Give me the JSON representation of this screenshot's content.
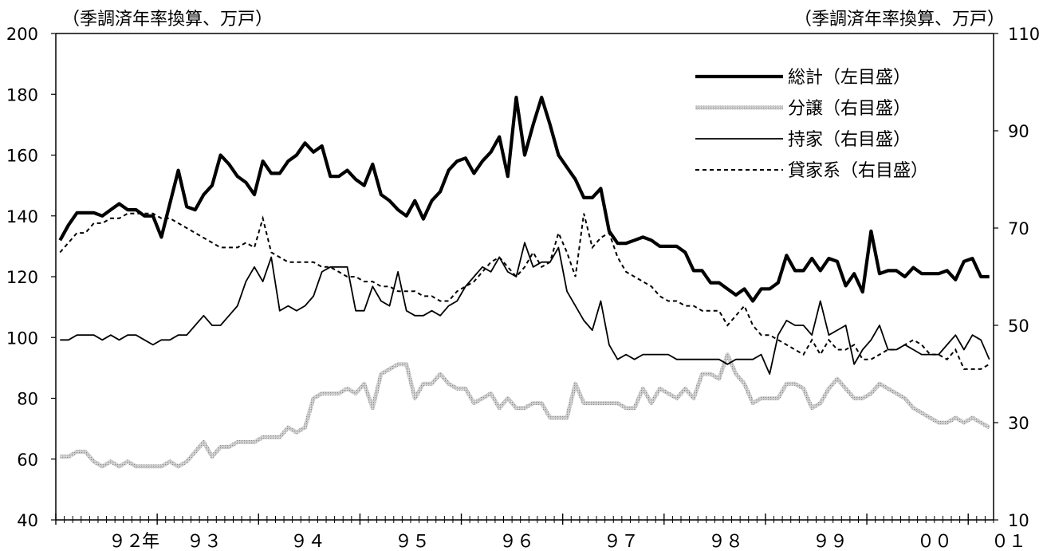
{
  "chart_data": {
    "type": "line",
    "left_axis": {
      "unit_label": "（季調済年率換算、万戸）",
      "range": [
        40,
        200
      ],
      "ticks": [
        40,
        60,
        80,
        100,
        120,
        140,
        160,
        180,
        200
      ]
    },
    "right_axis": {
      "unit_label": "（季調済年率換算、万戸）",
      "range": [
        10,
        110
      ],
      "ticks": [
        10,
        30,
        50,
        70,
        90,
        110
      ]
    },
    "x_axis": {
      "start": "1992-01",
      "months": 111,
      "tick_labels": [
        "９２",
        "年",
        "９３",
        "９４",
        "９５",
        "９６",
        "９７",
        "９８",
        "９９",
        "００",
        "０１"
      ]
    },
    "grid": false,
    "legend_position": "top-right",
    "series": [
      {
        "name": "総計（左目盛）",
        "axis": "left",
        "style": "thick-solid",
        "color": "#000000",
        "values": [
          132,
          137,
          141,
          141,
          141,
          140,
          142,
          144,
          142,
          142,
          140,
          140,
          133,
          144,
          155,
          143,
          142,
          147,
          150,
          160,
          157,
          153,
          151,
          147,
          158,
          154,
          154,
          158,
          160,
          164,
          161,
          163,
          153,
          153,
          155,
          152,
          150,
          157,
          147,
          145,
          142,
          140,
          145,
          139,
          145,
          148,
          155,
          158,
          159,
          154,
          158,
          161,
          166,
          153,
          179,
          160,
          170,
          179,
          170,
          160,
          156,
          152,
          146,
          146,
          149,
          135,
          131,
          131,
          132,
          133,
          132,
          130,
          130,
          130,
          128,
          122,
          122,
          118,
          118,
          116,
          114,
          116,
          112,
          116,
          116,
          118,
          127,
          122,
          122,
          126,
          122,
          126,
          125,
          117,
          121,
          115,
          135,
          121,
          122,
          122,
          120,
          123,
          121,
          121,
          121,
          122,
          119,
          125,
          126,
          120,
          120
        ]
      },
      {
        "name": "分譲（右目盛）",
        "axis": "right",
        "style": "gray-textured",
        "color": "#b4b4b4",
        "values": [
          23,
          23,
          24,
          24,
          22,
          21,
          22,
          21,
          22,
          21,
          21,
          21,
          21,
          22,
          21,
          22,
          24,
          26,
          23,
          25,
          25,
          26,
          26,
          26,
          27,
          27,
          27,
          29,
          28,
          29,
          35,
          36,
          36,
          36,
          37,
          36,
          38,
          33,
          40,
          41,
          42,
          42,
          35,
          38,
          38,
          40,
          38,
          37,
          37,
          34,
          35,
          36,
          33,
          35,
          33,
          33,
          34,
          34,
          31,
          31,
          31,
          38,
          34,
          34,
          34,
          34,
          34,
          33,
          33,
          37,
          34,
          37,
          36,
          35,
          37,
          35,
          40,
          40,
          39,
          44,
          40,
          38,
          34,
          35,
          35,
          35,
          38,
          38,
          37,
          33,
          34,
          37,
          39,
          37,
          35,
          35,
          36,
          38,
          37,
          36,
          35,
          33,
          32,
          31,
          30,
          30,
          31,
          30,
          31,
          30,
          29
        ]
      },
      {
        "name": "持家（右目盛）",
        "axis": "right",
        "style": "thin-solid",
        "color": "#000000",
        "values": [
          47,
          47,
          48,
          48,
          48,
          47,
          48,
          47,
          48,
          48,
          47,
          46,
          47,
          47,
          48,
          48,
          50,
          52,
          50,
          50,
          52,
          54,
          59,
          62,
          59,
          64,
          53,
          54,
          53,
          54,
          56,
          61,
          62,
          62,
          62,
          53,
          53,
          58,
          55,
          54,
          61,
          53,
          52,
          52,
          53,
          52,
          54,
          55,
          58,
          60,
          62,
          61,
          64,
          61,
          60,
          67,
          62,
          63,
          63,
          66,
          57,
          54,
          51,
          49,
          55,
          46,
          43,
          44,
          43,
          44,
          44,
          44,
          44,
          43,
          43,
          43,
          43,
          43,
          43,
          42,
          43,
          43,
          43,
          44,
          40,
          48,
          51,
          50,
          50,
          48,
          55,
          48,
          49,
          50,
          42,
          45,
          47,
          50,
          45,
          45,
          46,
          45,
          44,
          44,
          44,
          46,
          48,
          45,
          48,
          47,
          43
        ]
      },
      {
        "name": "貸家系（右目盛）",
        "axis": "right",
        "style": "dashed",
        "color": "#000000",
        "values": [
          65,
          67,
          69,
          69,
          71,
          71,
          72,
          72,
          73,
          73,
          73,
          73,
          72,
          72,
          71,
          70,
          69,
          68,
          67,
          66,
          66,
          66,
          67,
          66,
          72,
          65,
          64,
          63,
          63,
          63,
          63,
          62,
          62,
          61,
          60,
          60,
          59,
          59,
          58,
          58,
          57,
          57,
          57,
          56,
          56,
          55,
          55,
          57,
          58,
          59,
          61,
          63,
          64,
          62,
          60,
          62,
          65,
          62,
          63,
          69,
          65,
          60,
          73,
          66,
          68,
          69,
          64,
          61,
          60,
          59,
          58,
          56,
          55,
          55,
          54,
          54,
          53,
          53,
          53,
          50,
          52,
          54,
          50,
          48,
          48,
          47,
          46,
          45,
          44,
          47,
          44,
          47,
          45,
          45,
          46,
          43,
          43,
          44,
          45,
          45,
          46,
          47,
          46,
          44,
          44,
          43,
          45,
          41,
          41,
          41,
          42
        ]
      }
    ]
  }
}
